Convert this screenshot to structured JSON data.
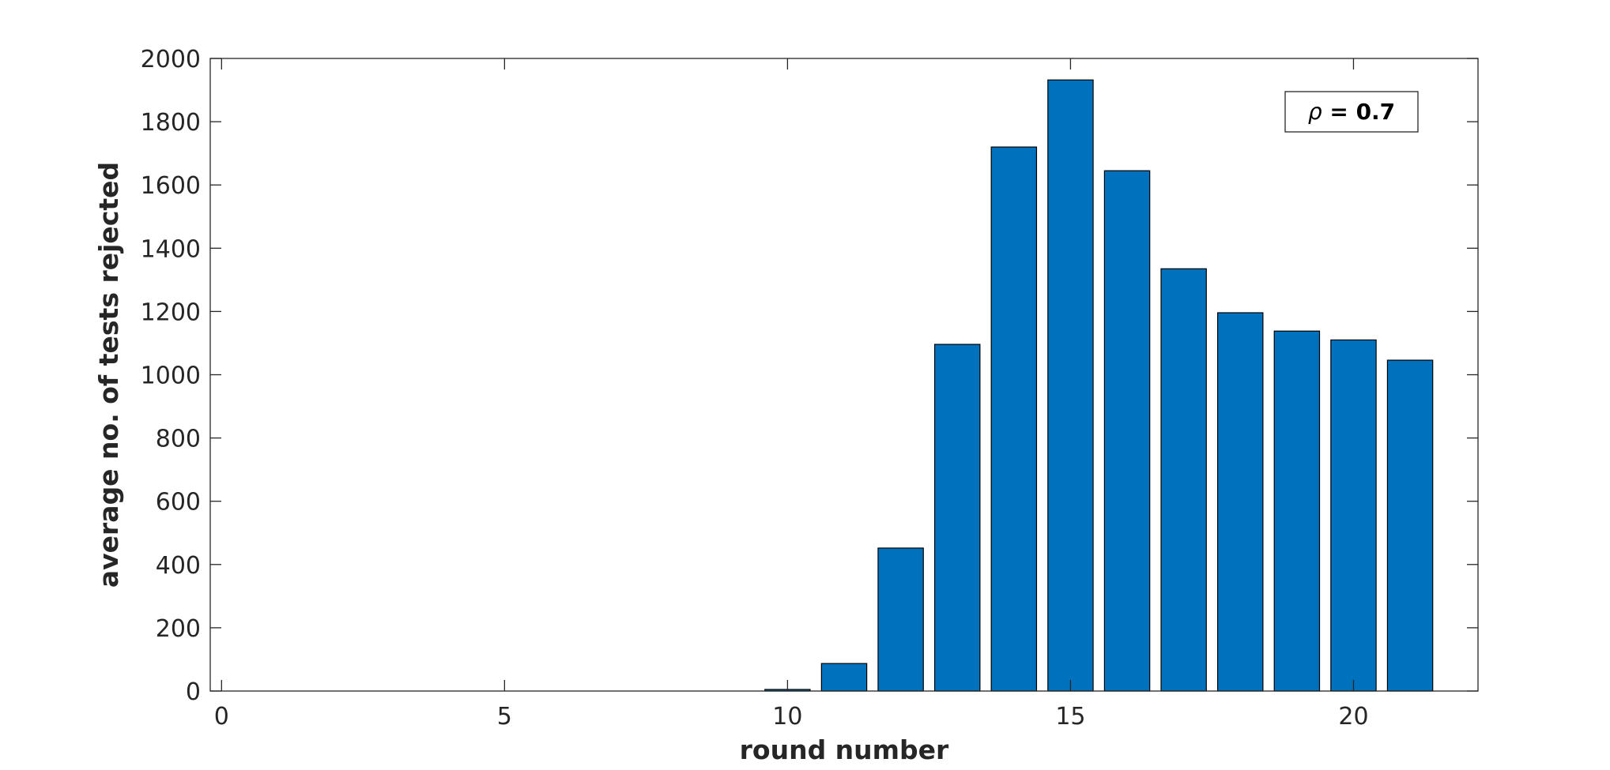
{
  "chart_data": {
    "type": "bar",
    "title": "",
    "xlabel": "round number",
    "ylabel": "average no. of tests rejected",
    "xlim": [
      -0.2,
      22.2
    ],
    "ylim": [
      0,
      2000
    ],
    "x_ticks": [
      0,
      5,
      10,
      15,
      20
    ],
    "x_tick_labels": [
      "0",
      "5",
      "10",
      "15",
      "20"
    ],
    "y_ticks": [
      0,
      200,
      400,
      600,
      800,
      1000,
      1200,
      1400,
      1600,
      1800,
      2000
    ],
    "y_tick_labels": [
      "0",
      "200",
      "400",
      "600",
      "800",
      "1000",
      "1200",
      "1400",
      "1600",
      "1800",
      "2000"
    ],
    "x": [
      1,
      2,
      3,
      4,
      5,
      6,
      7,
      8,
      9,
      10,
      11,
      12,
      13,
      14,
      15,
      16,
      17,
      18,
      19,
      20,
      21
    ],
    "values": [
      0,
      0,
      0,
      0,
      0,
      0,
      0,
      0,
      0,
      5,
      87,
      452,
      1096,
      1720,
      1932,
      1645,
      1335,
      1196,
      1138,
      1110,
      1046
    ],
    "bar_color": "#0072bd",
    "bar_edge_color": "#000000",
    "grid": false,
    "legend_placement": "top-right",
    "annotation": {
      "symbol": "ρ",
      "text": " = 0.7"
    }
  }
}
